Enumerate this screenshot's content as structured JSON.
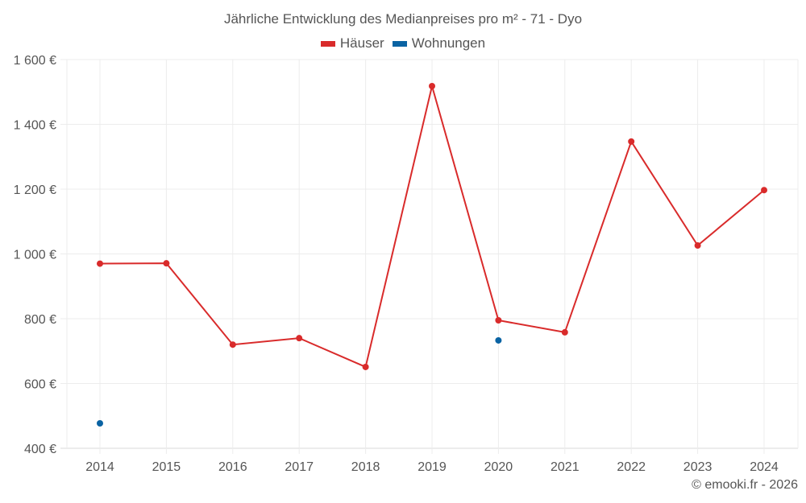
{
  "chart_data": {
    "type": "line",
    "title": "Jährliche Entwicklung des Medianpreises pro m² - 71 - Dyo",
    "xlabel": "",
    "ylabel": "",
    "categories": [
      "2014",
      "2015",
      "2016",
      "2017",
      "2018",
      "2019",
      "2020",
      "2021",
      "2022",
      "2023",
      "2024"
    ],
    "series": [
      {
        "name": "Häuser",
        "color": "#d92b2b",
        "values": [
          970,
          971,
          720,
          740,
          651,
          1518,
          795,
          758,
          1347,
          1026,
          1197
        ]
      },
      {
        "name": "Wohnungen",
        "color": "#0a63a3",
        "values": [
          477,
          null,
          null,
          null,
          null,
          null,
          733,
          null,
          null,
          null,
          null
        ]
      }
    ],
    "ylim": [
      400,
      1600
    ],
    "yticks": [
      400,
      600,
      800,
      1000,
      1200,
      1400,
      1600
    ],
    "ytick_labels": [
      "400 €",
      "600 €",
      "800 €",
      "1 000 €",
      "1 200 €",
      "1 400 €",
      "1 600 €"
    ],
    "grid": true,
    "legend_position": "top"
  },
  "header": {
    "title": "Jährliche Entwicklung des Medianpreises pro m² - 71 - Dyo"
  },
  "legend": [
    {
      "label": "Häuser",
      "color": "#d92b2b"
    },
    {
      "label": "Wohnungen",
      "color": "#0a63a3"
    }
  ],
  "footer": {
    "credit": "© emooki.fr - 2026"
  }
}
